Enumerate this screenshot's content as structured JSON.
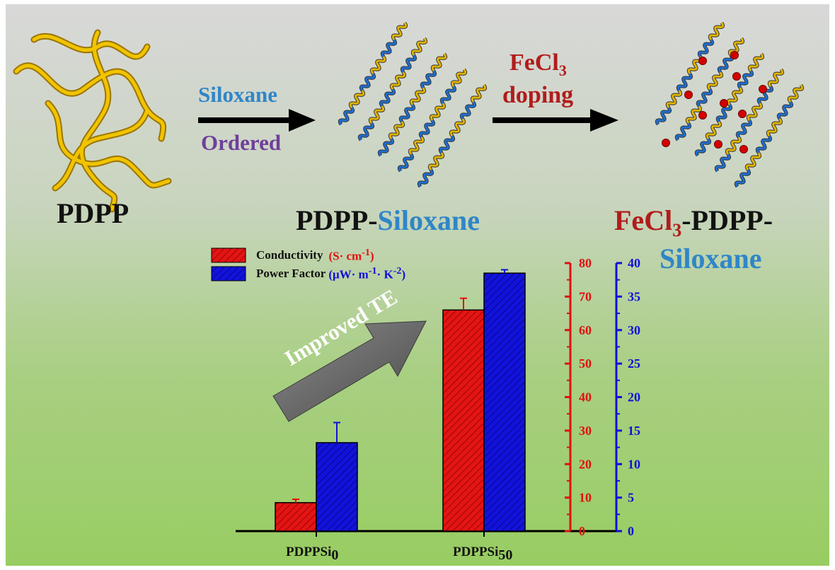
{
  "scheme": {
    "start_label": "PDPP",
    "step1_top": "Siloxane",
    "step1_bottom": "Ordered",
    "middle_label_a": "PDPP-",
    "middle_label_b": "Siloxane",
    "step2_top_a": "FeCl",
    "step2_top_sub": "3",
    "step2_bottom": "doping",
    "end_label_a": "FeCl",
    "end_label_sub": "3",
    "end_label_b": "-PDPP-",
    "end_label_c": "Siloxane",
    "arrow_text": "Improved TE"
  },
  "colors": {
    "red_series": "#e01010",
    "blue_series": "#1010d8",
    "gold_chain": "#e2b400",
    "blue_chain": "#1f6fd0",
    "dopant": "#d40000"
  },
  "chart_data": {
    "type": "bar",
    "categories": [
      "PDPPSi0",
      "PDPPSi50"
    ],
    "category_labels": [
      {
        "base": "PDPPSi",
        "sub": "0"
      },
      {
        "base": "PDPPSi",
        "sub": "50"
      }
    ],
    "series": [
      {
        "name": "Conductivity",
        "unit": "(S· cm-1)",
        "axis": "left",
        "values": [
          8.5,
          66
        ],
        "errors": [
          1.0,
          3.5
        ]
      },
      {
        "name": "Power Factor",
        "unit": "(μW· m-1· K-2)",
        "axis": "right",
        "values": [
          13.2,
          38.5
        ],
        "errors": [
          3.0,
          0.5
        ]
      }
    ],
    "left_axis": {
      "min": 0,
      "max": 80,
      "ticks": [
        0,
        10,
        20,
        30,
        40,
        50,
        60,
        70,
        80
      ]
    },
    "right_axis": {
      "min": 0,
      "max": 40,
      "ticks": [
        0,
        5,
        10,
        15,
        20,
        25,
        30,
        35,
        40
      ]
    },
    "legend_position": "top-left"
  }
}
